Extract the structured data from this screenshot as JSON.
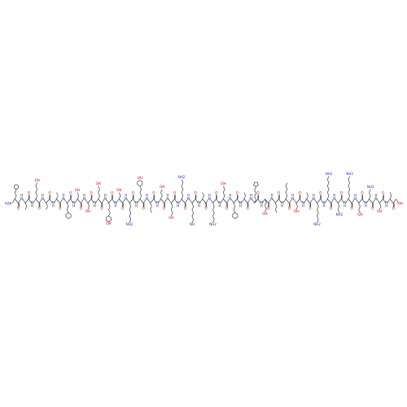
{
  "labels": {
    "oxygen": "O",
    "nitrogen": "N",
    "hydrogen": "H",
    "hydroxyl": "OH",
    "amino": "NH2",
    "terminal_amine": "H2N",
    "imine": "NH"
  }
}
